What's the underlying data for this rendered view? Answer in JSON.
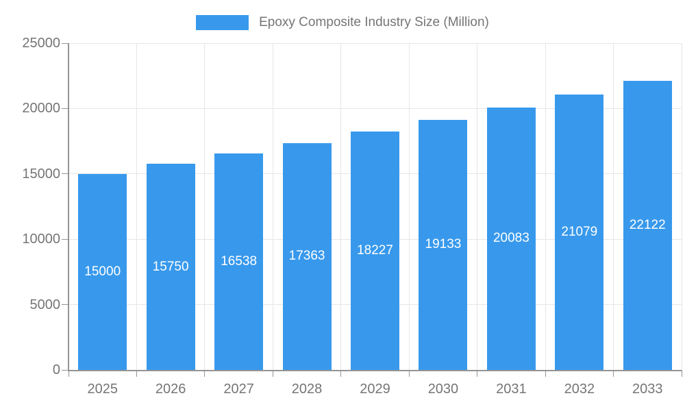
{
  "chart_data": {
    "type": "bar",
    "title": "Epoxy Composite Industry Size (Million)",
    "categories": [
      "2025",
      "2026",
      "2027",
      "2028",
      "2029",
      "2030",
      "2031",
      "2032",
      "2033"
    ],
    "values": [
      15000,
      15750,
      16538,
      17363,
      18227,
      19133,
      20083,
      21079,
      22122
    ],
    "value_labels": [
      "15000",
      "15750",
      "16538",
      "17363",
      "18227",
      "19133",
      "20083",
      "21079",
      "22122"
    ],
    "y_ticks": [
      "0",
      "5000",
      "10000",
      "15000",
      "20000",
      "25000"
    ],
    "y_tick_values": [
      0,
      5000,
      10000,
      15000,
      20000,
      25000
    ],
    "ylim": [
      0,
      25000
    ],
    "xlabel": "",
    "ylabel": "",
    "grid": true,
    "legend_position": "top",
    "colors": {
      "bar": "#3899ec",
      "bar_value_text": "#ffffff",
      "axis_text": "#757575",
      "grid_line": "#e6e6e6",
      "axis_line": "#949494"
    }
  }
}
